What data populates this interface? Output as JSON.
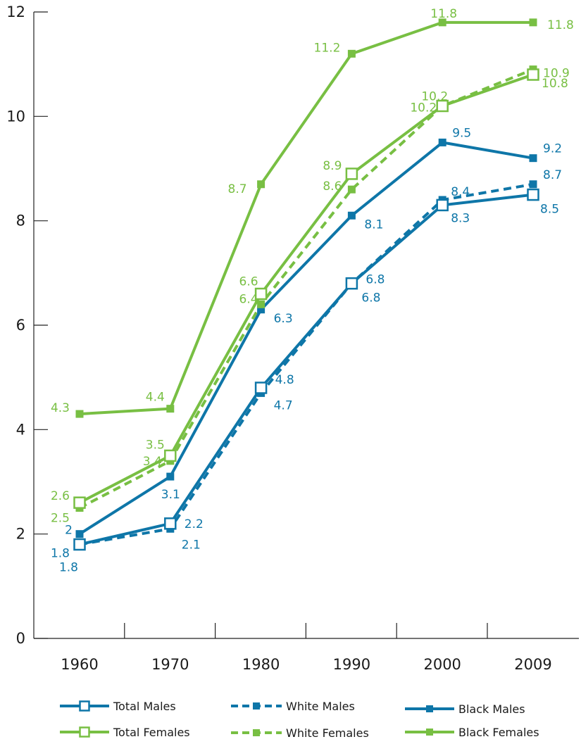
{
  "chart_data": {
    "type": "line",
    "x": [
      "1960",
      "1970",
      "1980",
      "1990",
      "2000",
      "2009"
    ],
    "ylim": [
      0,
      12
    ],
    "y_ticks": [
      "0",
      "2",
      "4",
      "6",
      "8",
      "10",
      "12"
    ],
    "grid": false,
    "legend_position": "bottom",
    "colors": {
      "male": "#0e76a8",
      "female": "#78bf43"
    },
    "series": [
      {
        "name": "Total Males",
        "group": "male",
        "style": "solid",
        "marker": "open-square",
        "values": [
          1.8,
          2.2,
          4.8,
          6.8,
          8.3,
          8.5
        ],
        "labels": [
          "1.8",
          "2.2",
          "4.8",
          "6.8",
          "8.3",
          "8.5"
        ]
      },
      {
        "name": "White Males",
        "group": "male",
        "style": "dashed",
        "marker": "filled-square",
        "values": [
          1.8,
          2.1,
          4.7,
          6.8,
          8.4,
          8.7
        ],
        "labels": [
          "1.8",
          "2.1",
          "4.7",
          "6.8",
          "8.4",
          "8.7"
        ]
      },
      {
        "name": "Black Males",
        "group": "male",
        "style": "solid",
        "marker": "filled-square",
        "values": [
          2.0,
          3.1,
          6.3,
          8.1,
          9.5,
          9.2
        ],
        "labels": [
          "2",
          "3.1",
          "6.3",
          "8.1",
          "9.5",
          "9.2"
        ]
      },
      {
        "name": "Total Females",
        "group": "female",
        "style": "solid",
        "marker": "open-square",
        "values": [
          2.6,
          3.5,
          6.6,
          8.9,
          10.2,
          10.8
        ],
        "labels": [
          "2.6",
          "3.5",
          "6.6",
          "8.9",
          "10.2",
          "10.8"
        ]
      },
      {
        "name": "White Females",
        "group": "female",
        "style": "dashed",
        "marker": "filled-square",
        "values": [
          2.5,
          3.4,
          6.4,
          8.6,
          10.2,
          10.9
        ],
        "labels": [
          "2.5",
          "3.4",
          "6.4",
          "8.6",
          "10.2",
          "10.9"
        ]
      },
      {
        "name": "Black Females",
        "group": "female",
        "style": "solid",
        "marker": "filled-square",
        "values": [
          4.3,
          4.4,
          8.7,
          11.2,
          11.8,
          11.8
        ],
        "labels": [
          "4.3",
          "4.4",
          "8.7",
          "11.2",
          "11.8",
          "11.8"
        ]
      }
    ]
  }
}
